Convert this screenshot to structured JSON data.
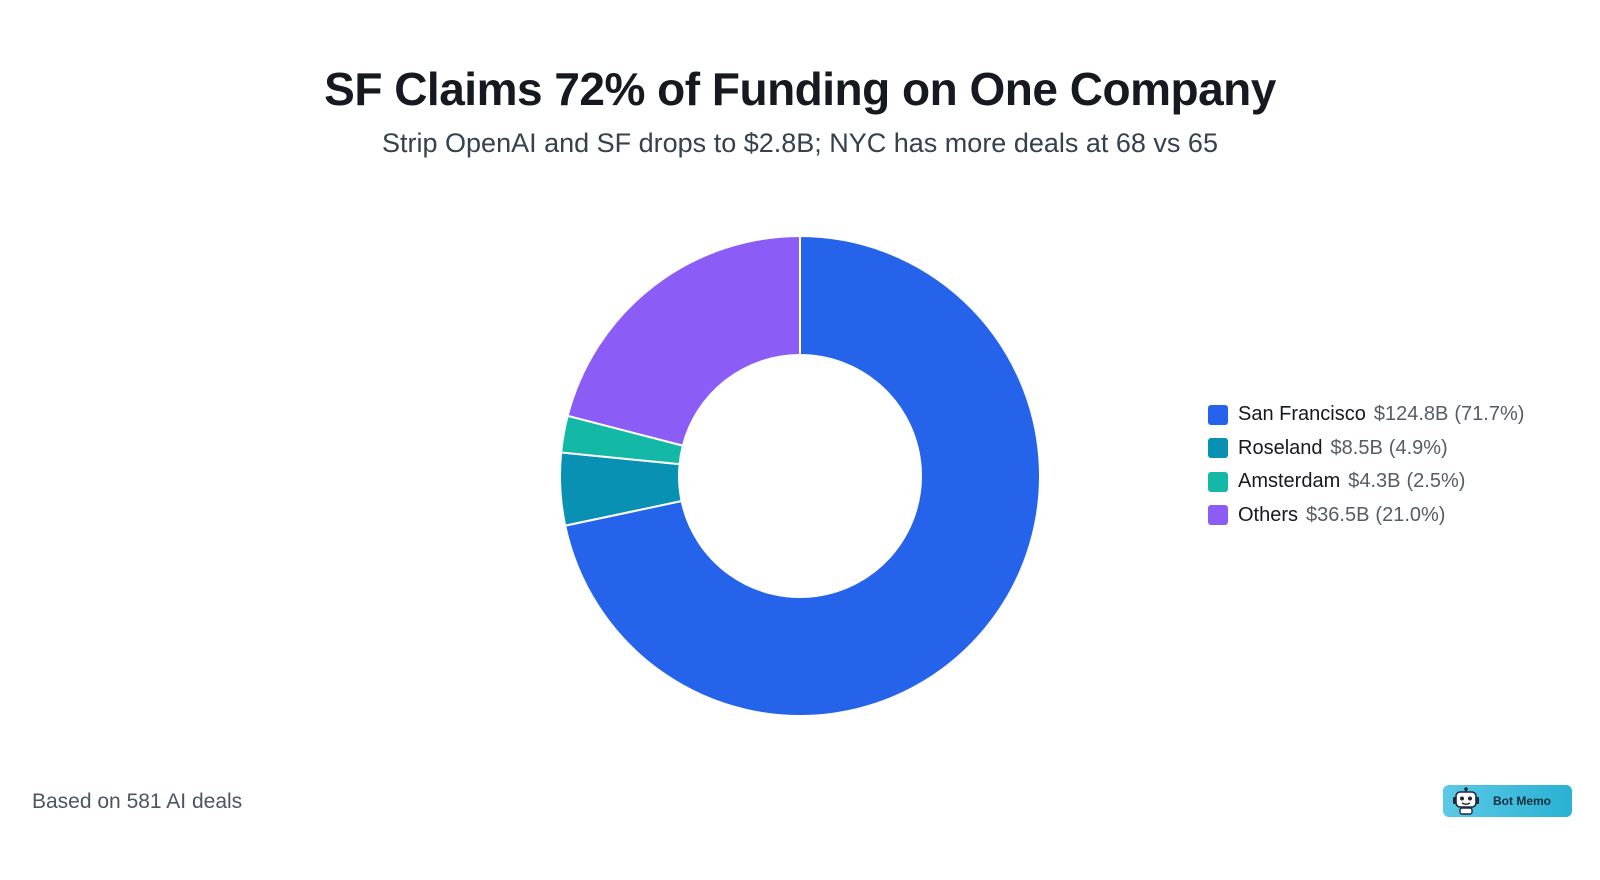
{
  "chart_data": {
    "type": "pie",
    "variant": "donut",
    "title": "SF Claims 72% of Funding on One Company",
    "subtitle": "Strip OpenAI and SF drops to $2.8B; NYC has more deals at 68 vs 65",
    "unit": "$B",
    "legend_position": "right",
    "slices": [
      {
        "label": "San Francisco",
        "value": 124.8,
        "value_label": "$124.8B",
        "percent": 71.7,
        "percent_label": "(71.7%)",
        "color": "#2563eb"
      },
      {
        "label": "Roseland",
        "value": 8.5,
        "value_label": "$8.5B",
        "percent": 4.9,
        "percent_label": "(4.9%)",
        "color": "#0891b2"
      },
      {
        "label": "Amsterdam",
        "value": 4.3,
        "value_label": "$4.3B",
        "percent": 2.5,
        "percent_label": "(2.5%)",
        "color": "#14b8a6"
      },
      {
        "label": "Others",
        "value": 36.5,
        "value_label": "$36.5B",
        "percent": 21.0,
        "percent_label": "(21.0%)",
        "color": "#8b5cf6"
      }
    ]
  },
  "footnote": "Based on 581 AI deals",
  "brand": {
    "name": "Bot Memo",
    "icon": "robot-icon"
  }
}
